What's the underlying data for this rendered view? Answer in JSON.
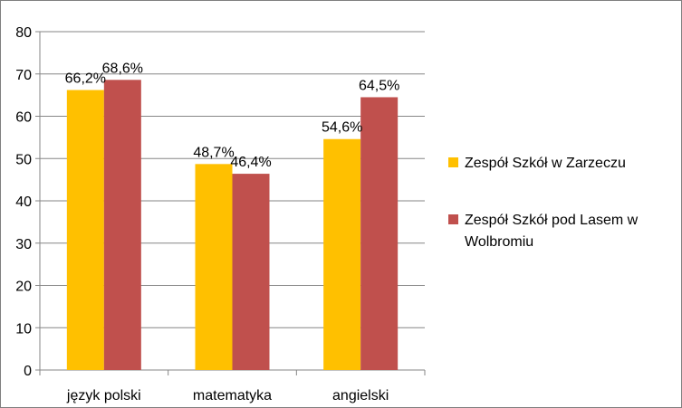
{
  "chart_data": {
    "type": "bar",
    "categories": [
      "język polski",
      "matematyka",
      "angielski"
    ],
    "series": [
      {
        "name": "Zespół Szkół w Zarzeczu",
        "values": [
          66.2,
          48.7,
          54.6
        ],
        "labels": [
          "66,2%",
          "48,7%",
          "54,6%"
        ],
        "color": "#ffc000"
      },
      {
        "name": "Zespół Szkół pod Lasem w Wolbromiu",
        "values": [
          68.6,
          46.4,
          64.5
        ],
        "labels": [
          "68,6%",
          "46,4%",
          "64,5%"
        ],
        "color": "#c0504d"
      }
    ],
    "yticks": [
      "0",
      "10",
      "20",
      "30",
      "40",
      "50",
      "60",
      "70",
      "80"
    ],
    "ylim": [
      0,
      80
    ],
    "grid": true,
    "legend_position": "right"
  }
}
